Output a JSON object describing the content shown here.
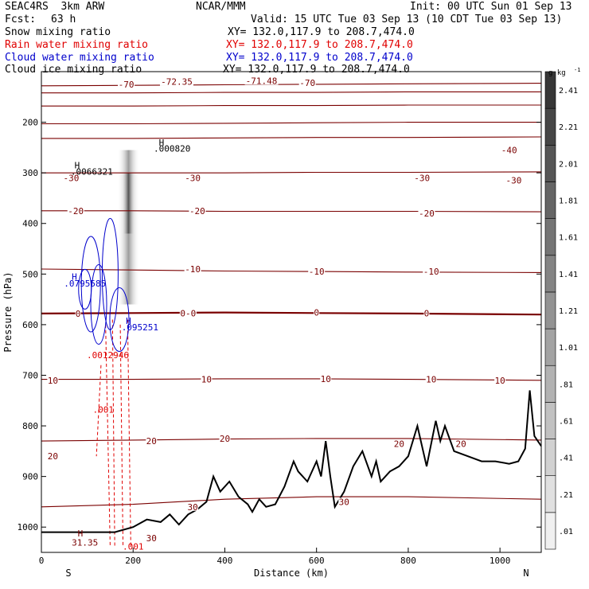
{
  "header": {
    "model": "SEAC4RS  3km ARW",
    "fcst_label": "Fcst:",
    "fcst_value": "63 h",
    "center": "NCAR/MMM",
    "init": "Init: 00 UTC Sun 01 Sep 13",
    "valid": "Valid: 15 UTC Tue 03 Sep 13 (10 CDT Tue 03 Sep 13)"
  },
  "fields": [
    {
      "name": "Snow mixing ratio",
      "xy": "XY= 132.0,117.9 to 208.7,474.0",
      "color": "#000000"
    },
    {
      "name": "Rain water mixing ratio",
      "xy": "XY= 132.0,117.9 to 208.7,474.0",
      "color": "#e00000"
    },
    {
      "name": "Cloud water mixing ratio",
      "xy": "XY= 132.0,117.9 to 208.7,474.0",
      "color": "#0000cc"
    },
    {
      "name": "Cloud ice mixing ratio",
      "xy": "XY= 132.0,117.9 to 208.7,474.0",
      "color": "#000000"
    }
  ],
  "chart_data": {
    "type": "cross-section",
    "xlabel": "Distance (km)",
    "ylabel": "Pressure (hPa)",
    "xlim": [
      0,
      1090
    ],
    "ylim": [
      1050,
      100
    ],
    "x_ticks": [
      0,
      200,
      400,
      600,
      800,
      1000
    ],
    "y_ticks": [
      200,
      300,
      400,
      500,
      600,
      700,
      800,
      900,
      1000
    ],
    "x_end_labels": {
      "left": "S",
      "right": "N"
    },
    "colorbar": {
      "unit": "g kg",
      "unit_exp": "-1",
      "levels": [
        0.01,
        0.21,
        0.41,
        0.61,
        0.81,
        1.01,
        1.21,
        1.41,
        1.61,
        1.81,
        2.01,
        2.21,
        2.41
      ],
      "labels": [
        ".01",
        ".21",
        ".41",
        ".61",
        ".81",
        "1.01",
        "1.21",
        "1.41",
        "1.61",
        "1.81",
        "2.01",
        "2.21",
        "2.41"
      ]
    },
    "temperature_contours": [
      {
        "value": -70,
        "label": "-70",
        "p": [
          128,
          127,
          126,
          125,
          124,
          123
        ]
      },
      {
        "value": -60,
        "label": "",
        "p": [
          142,
          142,
          141,
          141,
          140,
          140
        ]
      },
      {
        "value": -50,
        "label": "",
        "p": [
          168,
          168,
          167,
          167,
          166,
          166
        ]
      },
      {
        "value": -40,
        "label": "-40",
        "p": [
          203,
          203,
          202,
          201,
          200,
          200
        ]
      },
      {
        "value": -40,
        "label": "",
        "p": [
          232,
          232,
          231,
          230,
          230,
          229
        ]
      },
      {
        "value": -30,
        "label": "-30",
        "p": [
          300,
          300,
          300,
          299,
          299,
          298
        ]
      },
      {
        "value": -20,
        "label": "-20",
        "p": [
          375,
          375,
          376,
          376,
          376,
          377
        ]
      },
      {
        "value": -10,
        "label": "-10",
        "p": [
          490,
          492,
          494,
          495,
          496,
          497
        ]
      },
      {
        "value": 0,
        "label": "0",
        "p": [
          578,
          577,
          576,
          577,
          578,
          580
        ]
      },
      {
        "value": 10,
        "label": "10",
        "p": [
          708,
          708,
          707,
          707,
          708,
          710
        ]
      },
      {
        "value": 20,
        "label": "20",
        "p": [
          830,
          828,
          826,
          825,
          825,
          828
        ]
      },
      {
        "value": 30,
        "label": "30",
        "p": [
          960,
          955,
          945,
          940,
          940,
          945
        ]
      }
    ],
    "contour_x": [
      0,
      200,
      400,
      600,
      800,
      1090
    ],
    "contour_labels": [
      {
        "text": "-70",
        "x": 185,
        "p": 125
      },
      {
        "text": "-70",
        "x": 580,
        "p": 122
      },
      {
        "text": "-72.35",
        "x": 295,
        "p": 120
      },
      {
        "text": "-71.48",
        "x": 480,
        "p": 118
      },
      {
        "text": "-40",
        "x": 1020,
        "p": 255
      },
      {
        "text": "-30",
        "x": 65,
        "p": 310
      },
      {
        "text": "-30",
        "x": 330,
        "p": 310
      },
      {
        "text": "-30",
        "x": 830,
        "p": 310
      },
      {
        "text": "-30",
        "x": 1030,
        "p": 315
      },
      {
        "text": "-20",
        "x": 75,
        "p": 375
      },
      {
        "text": "-20",
        "x": 340,
        "p": 375
      },
      {
        "text": "-20",
        "x": 840,
        "p": 380
      },
      {
        "text": "-10",
        "x": 330,
        "p": 490
      },
      {
        "text": "-10",
        "x": 600,
        "p": 495
      },
      {
        "text": "-10",
        "x": 850,
        "p": 495
      },
      {
        "text": "0",
        "x": 80,
        "p": 578
      },
      {
        "text": "0-0",
        "x": 320,
        "p": 577
      },
      {
        "text": "0",
        "x": 600,
        "p": 576
      },
      {
        "text": "0",
        "x": 840,
        "p": 577
      },
      {
        "text": "10",
        "x": 25,
        "p": 710
      },
      {
        "text": "10",
        "x": 360,
        "p": 708
      },
      {
        "text": "10",
        "x": 620,
        "p": 707
      },
      {
        "text": "10",
        "x": 850,
        "p": 708
      },
      {
        "text": "10",
        "x": 1000,
        "p": 710
      },
      {
        "text": "20",
        "x": 240,
        "p": 830
      },
      {
        "text": "20",
        "x": 400,
        "p": 825
      },
      {
        "text": "20",
        "x": 780,
        "p": 835
      },
      {
        "text": "20",
        "x": 915,
        "p": 835
      },
      {
        "text": "20",
        "x": 25,
        "p": 860
      },
      {
        "text": "30",
        "x": 330,
        "p": 960
      },
      {
        "text": "30",
        "x": 660,
        "p": 950
      },
      {
        "text": "30",
        "x": 240,
        "p": 1022
      }
    ],
    "extrema_labels": [
      {
        "text": "H",
        "x": 78,
        "p": 285,
        "color": "#000000"
      },
      {
        "text": ".0066321",
        "x": 110,
        "p": 297,
        "color": "#000000"
      },
      {
        "text": "H",
        "x": 262,
        "p": 240,
        "color": "#000000"
      },
      {
        "text": ".000820",
        "x": 285,
        "p": 252,
        "color": "#000000"
      },
      {
        "text": "H",
        "x": 72,
        "p": 505,
        "color": "#0000cc"
      },
      {
        "text": ".0795585",
        "x": 95,
        "p": 518,
        "color": "#0000cc"
      },
      {
        "text": "H",
        "x": 190,
        "p": 592,
        "color": "#0000cc"
      },
      {
        "text": ".095251",
        "x": 215,
        "p": 605,
        "color": "#0000cc"
      },
      {
        "text": ".0012946",
        "x": 145,
        "p": 660,
        "color": "#e00000"
      },
      {
        "text": ".001",
        "x": 135,
        "p": 768,
        "color": "#e00000"
      },
      {
        "text": "H",
        "x": 85,
        "p": 1012,
        "color": "#7a0000"
      },
      {
        "text": "31.35",
        "x": 95,
        "p": 1030,
        "color": "#7a0000"
      },
      {
        "text": ".001",
        "x": 200,
        "p": 1038,
        "color": "#e00000"
      }
    ],
    "terrain": {
      "x": [
        0,
        160,
        200,
        230,
        260,
        280,
        300,
        320,
        340,
        360,
        375,
        390,
        410,
        430,
        450,
        460,
        475,
        490,
        510,
        530,
        550,
        560,
        580,
        600,
        610,
        620,
        630,
        640,
        660,
        680,
        700,
        720,
        730,
        740,
        760,
        780,
        800,
        820,
        840,
        860,
        870,
        880,
        900,
        930,
        960,
        990,
        1020,
        1040,
        1055,
        1065,
        1075,
        1090
      ],
      "p": [
        1010,
        1010,
        1000,
        985,
        990,
        975,
        995,
        975,
        965,
        950,
        900,
        930,
        910,
        940,
        955,
        970,
        945,
        960,
        955,
        920,
        870,
        890,
        910,
        870,
        900,
        830,
        900,
        960,
        930,
        880,
        850,
        900,
        870,
        910,
        890,
        880,
        860,
        800,
        880,
        790,
        830,
        800,
        850,
        860,
        870,
        870,
        875,
        870,
        845,
        730,
        820,
        840
      ]
    },
    "snow_column": {
      "x": 190,
      "p_top": 255,
      "p_bottom": 560,
      "p_core_top": 300,
      "p_core_bottom": 420
    }
  }
}
